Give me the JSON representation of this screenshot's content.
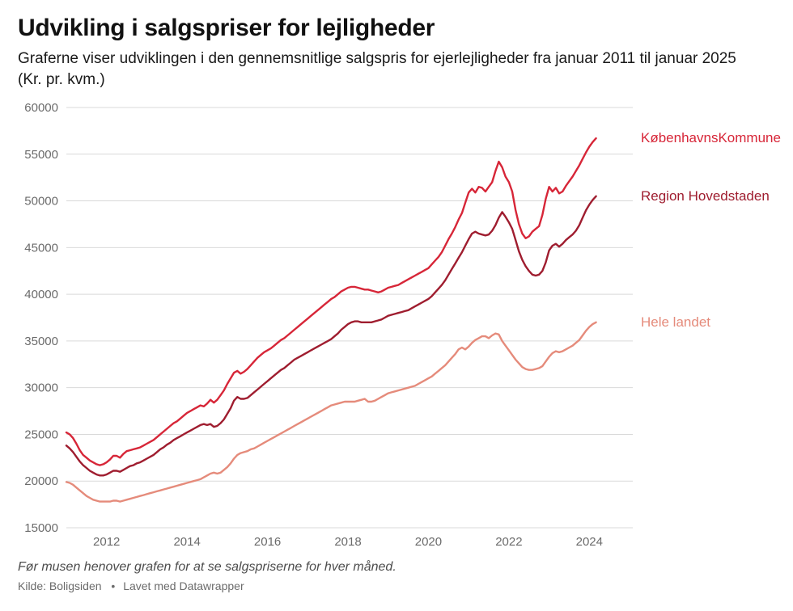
{
  "title": "Udvikling i salgspriser for lejligheder",
  "subtitle": "Graferne viser udviklingen i den gennemsnitlige salgspris for ejerlejligheder fra januar 2011 til januar 2025 (Kr. pr. kvm.)",
  "note": "Før musen henover grafen for at se salgspriserne for hver måned.",
  "source_label": "Kilde: Boligsiden",
  "credit_label": "Lavet med Datawrapper",
  "chart": {
    "type": "line",
    "background_color": "#ffffff",
    "grid_color": "#d9d9d9",
    "axis_text_color": "#6b6b6b",
    "title_fontsize": 30,
    "subtitle_fontsize": 19,
    "label_fontsize": 15,
    "series_label_fontsize": 17,
    "line_width": 2.4,
    "x": {
      "min": 2011.0,
      "max": 2025.08,
      "ticks": [
        2012,
        2014,
        2016,
        2018,
        2020,
        2022,
        2024
      ]
    },
    "y": {
      "min": 15000,
      "max": 60000,
      "tick_step": 5000,
      "ticks": [
        15000,
        20000,
        25000,
        30000,
        35000,
        40000,
        45000,
        50000,
        55000,
        60000
      ]
    },
    "step_months": 1,
    "series": [
      {
        "id": "kobenhavn",
        "label": "KøbenhavnsKommune",
        "color": "#d72638",
        "values": [
          25200,
          25000,
          24600,
          24000,
          23300,
          22800,
          22500,
          22200,
          22000,
          21800,
          21700,
          21800,
          22000,
          22300,
          22700,
          22700,
          22500,
          22900,
          23200,
          23300,
          23400,
          23500,
          23600,
          23800,
          24000,
          24200,
          24400,
          24700,
          25000,
          25300,
          25600,
          25900,
          26200,
          26400,
          26700,
          27000,
          27300,
          27500,
          27700,
          27900,
          28100,
          28000,
          28300,
          28700,
          28400,
          28700,
          29200,
          29700,
          30400,
          31000,
          31600,
          31800,
          31500,
          31700,
          32000,
          32400,
          32800,
          33200,
          33500,
          33800,
          34000,
          34200,
          34500,
          34800,
          35100,
          35300,
          35600,
          35900,
          36200,
          36500,
          36800,
          37100,
          37400,
          37700,
          38000,
          38300,
          38600,
          38900,
          39200,
          39500,
          39700,
          40000,
          40300,
          40500,
          40700,
          40800,
          40800,
          40700,
          40600,
          40500,
          40500,
          40400,
          40300,
          40200,
          40300,
          40500,
          40700,
          40800,
          40900,
          41000,
          41200,
          41400,
          41600,
          41800,
          42000,
          42200,
          42400,
          42600,
          42800,
          43200,
          43600,
          44000,
          44500,
          45200,
          45900,
          46500,
          47200,
          48000,
          48700,
          49800,
          50900,
          51300,
          50900,
          51500,
          51400,
          51000,
          51500,
          52000,
          53200,
          54200,
          53600,
          52600,
          52000,
          51000,
          49000,
          47500,
          46500,
          46000,
          46200,
          46700,
          47000,
          47300,
          48500,
          50200,
          51500,
          51000,
          51400,
          50800,
          51000,
          51600,
          52100,
          52600,
          53200,
          53800,
          54500,
          55200,
          55800,
          56300,
          56700
        ]
      },
      {
        "id": "hovedstaden",
        "label": "Region Hovedstaden",
        "color": "#9f1d2f",
        "values": [
          23800,
          23500,
          23100,
          22600,
          22100,
          21700,
          21400,
          21100,
          20900,
          20700,
          20600,
          20600,
          20700,
          20900,
          21100,
          21100,
          21000,
          21200,
          21400,
          21600,
          21700,
          21900,
          22000,
          22200,
          22400,
          22600,
          22800,
          23100,
          23400,
          23600,
          23900,
          24100,
          24400,
          24600,
          24800,
          25000,
          25200,
          25400,
          25600,
          25800,
          26000,
          26100,
          26000,
          26100,
          25800,
          25900,
          26200,
          26600,
          27200,
          27800,
          28600,
          29000,
          28800,
          28800,
          28900,
          29200,
          29500,
          29800,
          30100,
          30400,
          30700,
          31000,
          31300,
          31600,
          31900,
          32100,
          32400,
          32700,
          33000,
          33200,
          33400,
          33600,
          33800,
          34000,
          34200,
          34400,
          34600,
          34800,
          35000,
          35200,
          35500,
          35800,
          36200,
          36500,
          36800,
          37000,
          37100,
          37100,
          37000,
          37000,
          37000,
          37000,
          37100,
          37200,
          37300,
          37500,
          37700,
          37800,
          37900,
          38000,
          38100,
          38200,
          38300,
          38500,
          38700,
          38900,
          39100,
          39300,
          39500,
          39800,
          40200,
          40600,
          41000,
          41500,
          42100,
          42700,
          43300,
          43900,
          44500,
          45200,
          45900,
          46500,
          46700,
          46500,
          46400,
          46300,
          46400,
          46800,
          47400,
          48200,
          48800,
          48300,
          47700,
          47000,
          45800,
          44600,
          43700,
          43000,
          42500,
          42100,
          42000,
          42100,
          42500,
          43400,
          44700,
          45200,
          45400,
          45100,
          45400,
          45800,
          46100,
          46400,
          46800,
          47400,
          48200,
          49000,
          49600,
          50100,
          50500
        ]
      },
      {
        "id": "landet",
        "label": "Hele landet",
        "color": "#e58b7b",
        "values": [
          19900,
          19800,
          19600,
          19300,
          19000,
          18700,
          18400,
          18200,
          18000,
          17900,
          17800,
          17800,
          17800,
          17800,
          17900,
          17900,
          17800,
          17900,
          18000,
          18100,
          18200,
          18300,
          18400,
          18500,
          18600,
          18700,
          18800,
          18900,
          19000,
          19100,
          19200,
          19300,
          19400,
          19500,
          19600,
          19700,
          19800,
          19900,
          20000,
          20100,
          20200,
          20400,
          20600,
          20800,
          20900,
          20800,
          20900,
          21200,
          21500,
          21900,
          22400,
          22800,
          23000,
          23100,
          23200,
          23400,
          23500,
          23700,
          23900,
          24100,
          24300,
          24500,
          24700,
          24900,
          25100,
          25300,
          25500,
          25700,
          25900,
          26100,
          26300,
          26500,
          26700,
          26900,
          27100,
          27300,
          27500,
          27700,
          27900,
          28100,
          28200,
          28300,
          28400,
          28500,
          28500,
          28500,
          28500,
          28600,
          28700,
          28800,
          28500,
          28500,
          28600,
          28800,
          29000,
          29200,
          29400,
          29500,
          29600,
          29700,
          29800,
          29900,
          30000,
          30100,
          30200,
          30400,
          30600,
          30800,
          31000,
          31200,
          31500,
          31800,
          32100,
          32400,
          32800,
          33200,
          33600,
          34100,
          34300,
          34100,
          34400,
          34800,
          35100,
          35300,
          35500,
          35500,
          35300,
          35600,
          35800,
          35700,
          35000,
          34500,
          34000,
          33500,
          33000,
          32600,
          32200,
          32000,
          31900,
          31900,
          32000,
          32100,
          32300,
          32800,
          33300,
          33700,
          33900,
          33800,
          33900,
          34100,
          34300,
          34500,
          34800,
          35100,
          35600,
          36100,
          36500,
          36800,
          37000
        ]
      }
    ]
  }
}
